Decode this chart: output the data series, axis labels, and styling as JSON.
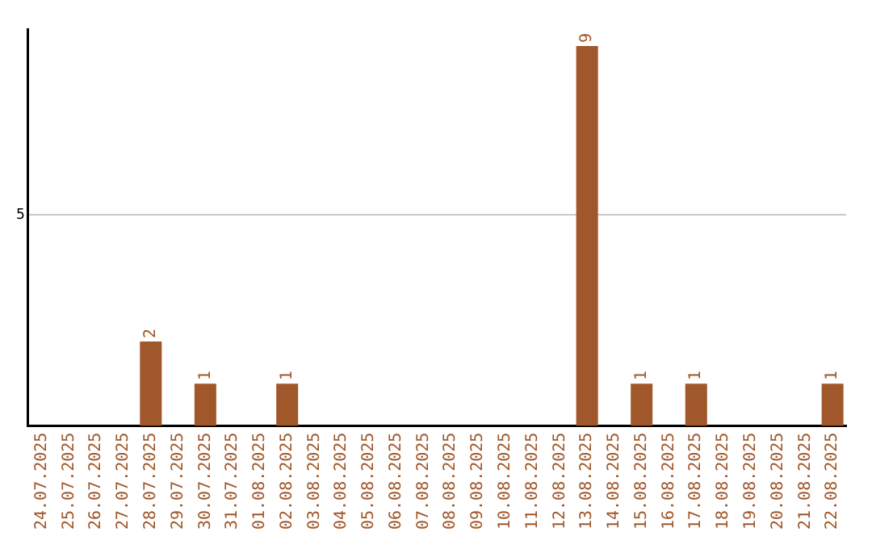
{
  "chart_data": {
    "type": "bar",
    "categories": [
      "24.07.2025",
      "25.07.2025",
      "26.07.2025",
      "27.07.2025",
      "28.07.2025",
      "29.07.2025",
      "30.07.2025",
      "31.07.2025",
      "01.08.2025",
      "02.08.2025",
      "03.08.2025",
      "04.08.2025",
      "05.08.2025",
      "06.08.2025",
      "07.08.2025",
      "08.08.2025",
      "09.08.2025",
      "10.08.2025",
      "11.08.2025",
      "12.08.2025",
      "13.08.2025",
      "14.08.2025",
      "15.08.2025",
      "16.08.2025",
      "17.08.2025",
      "18.08.2025",
      "19.08.2025",
      "20.08.2025",
      "21.08.2025",
      "22.08.2025"
    ],
    "values": [
      0,
      0,
      0,
      0,
      2,
      0,
      1,
      0,
      0,
      1,
      0,
      0,
      0,
      0,
      0,
      0,
      0,
      0,
      0,
      0,
      9,
      0,
      1,
      0,
      1,
      0,
      0,
      0,
      0,
      1
    ],
    "value_labels": [
      null,
      null,
      null,
      null,
      "2",
      null,
      "1",
      null,
      null,
      "1",
      null,
      null,
      null,
      null,
      null,
      null,
      null,
      null,
      null,
      null,
      "9",
      null,
      "1",
      null,
      "1",
      null,
      null,
      null,
      null,
      "1"
    ],
    "color": "#a0572a",
    "ylim": [
      0,
      9.4
    ],
    "yticks": [
      5
    ],
    "grid": "y",
    "legend": false
  }
}
